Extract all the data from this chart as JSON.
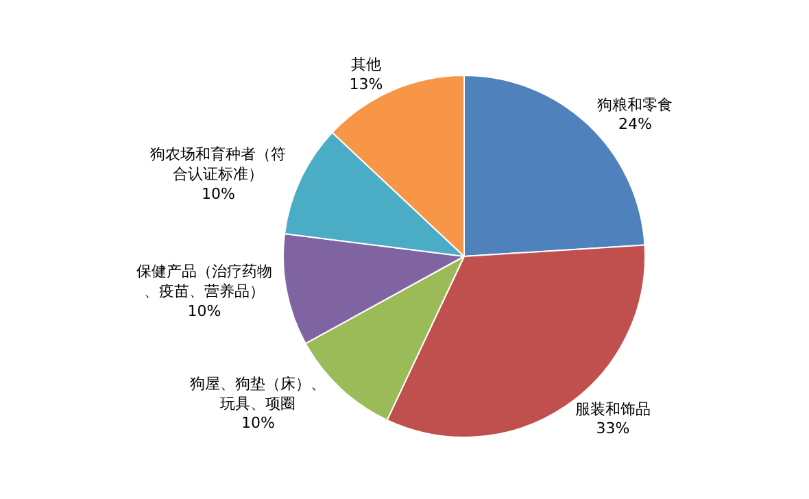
{
  "chart_data": {
    "type": "pie",
    "categories": [
      "狗粮和零食",
      "服装和饰品",
      "狗屋、狗垫（床）、玩具、项圈",
      "保健产品（治疗药物、疫苗、营养品）",
      "狗农场和育种者（符合认证标准）",
      "其他"
    ],
    "values": [
      24,
      33,
      10,
      10,
      10,
      13
    ],
    "value_labels": [
      "24%",
      "33%",
      "10%",
      "10%",
      "10%",
      "13%"
    ],
    "colors": [
      "#4f81bd",
      "#c0504d",
      "#9bbb59",
      "#8064a2",
      "#4bacc6",
      "#f79646"
    ],
    "legend": false
  }
}
